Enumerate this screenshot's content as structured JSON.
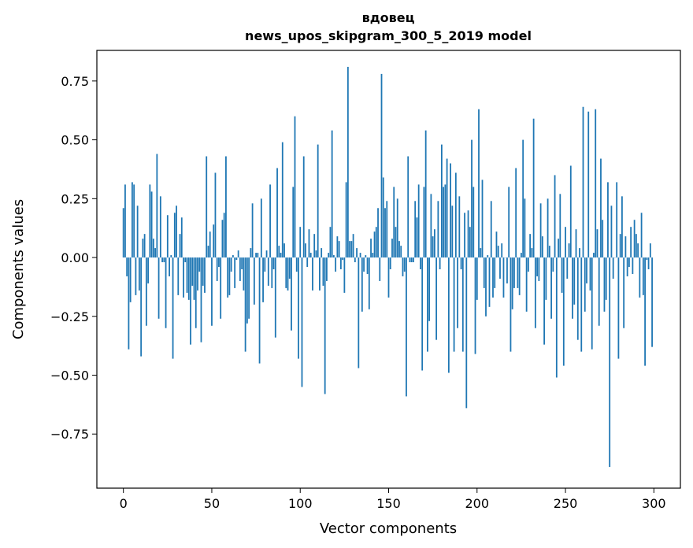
{
  "chart_data": {
    "type": "bar",
    "title": "вдовец",
    "subtitle": "news_upos_skipgram_300_5_2019 model",
    "xlabel": "Vector components",
    "ylabel": "Components values",
    "xlim": [
      -15,
      315
    ],
    "ylim": [
      -0.98,
      0.88
    ],
    "xticks": [
      0,
      50,
      100,
      150,
      200,
      250,
      300
    ],
    "yticks": [
      -0.75,
      -0.5,
      -0.25,
      0.0,
      0.25,
      0.5,
      0.75
    ],
    "ytick_labels": [
      "−0.75",
      "−0.50",
      "−0.25",
      "0.00",
      "0.25",
      "0.50",
      "0.75"
    ],
    "grid": false,
    "bar_color": "#1f77b4",
    "values": [
      0.21,
      0.31,
      -0.08,
      -0.39,
      -0.19,
      0.32,
      0.31,
      -0.16,
      0.22,
      -0.14,
      -0.42,
      0.08,
      0.1,
      -0.29,
      -0.11,
      0.31,
      0.28,
      0.08,
      0.04,
      0.44,
      -0.26,
      0.26,
      -0.02,
      -0.02,
      -0.3,
      0.18,
      -0.08,
      0.01,
      -0.43,
      0.19,
      0.22,
      -0.16,
      0.1,
      0.17,
      -0.17,
      -0.02,
      -0.15,
      -0.18,
      -0.37,
      -0.12,
      -0.18,
      -0.3,
      -0.14,
      -0.06,
      -0.36,
      -0.12,
      -0.15,
      0.43,
      0.05,
      0.11,
      -0.29,
      0.14,
      0.36,
      -0.1,
      -0.04,
      -0.26,
      0.16,
      0.19,
      0.43,
      -0.17,
      -0.16,
      -0.06,
      0.01,
      -0.13,
      -0.01,
      0.03,
      -0.1,
      -0.05,
      -0.14,
      -0.4,
      -0.28,
      -0.26,
      0.04,
      0.23,
      -0.2,
      0.02,
      0.02,
      -0.45,
      0.25,
      -0.19,
      -0.06,
      0.03,
      -0.12,
      0.31,
      -0.13,
      -0.05,
      -0.34,
      0.38,
      0.05,
      0.02,
      0.49,
      0.06,
      -0.13,
      -0.14,
      -0.09,
      -0.31,
      0.3,
      0.6,
      -0.06,
      -0.43,
      0.13,
      -0.55,
      0.43,
      0.06,
      -0.04,
      0.12,
      0.02,
      -0.14,
      0.1,
      0.03,
      0.48,
      -0.14,
      0.04,
      -0.12,
      -0.58,
      -0.1,
      0.02,
      0.13,
      0.54,
      0.01,
      -0.06,
      0.09,
      0.07,
      -0.05,
      -0.01,
      -0.15,
      0.32,
      0.81,
      0.07,
      0.07,
      0.1,
      -0.02,
      0.04,
      -0.47,
      0.02,
      -0.23,
      -0.06,
      0.01,
      -0.07,
      -0.22,
      0.08,
      0.02,
      0.11,
      0.13,
      0.21,
      -0.1,
      0.78,
      0.34,
      0.21,
      0.24,
      -0.17,
      -0.05,
      0.08,
      0.3,
      0.13,
      0.25,
      0.07,
      0.05,
      -0.08,
      -0.06,
      -0.59,
      0.43,
      -0.02,
      -0.02,
      -0.02,
      0.24,
      0.17,
      0.31,
      -0.05,
      -0.48,
      0.3,
      0.54,
      -0.4,
      -0.27,
      0.27,
      0.09,
      0.12,
      -0.35,
      0.24,
      -0.05,
      0.48,
      0.3,
      0.31,
      0.42,
      -0.49,
      0.4,
      0.22,
      -0.4,
      0.36,
      -0.3,
      0.26,
      -0.05,
      -0.4,
      0.19,
      -0.64,
      0.2,
      0.13,
      0.5,
      0.3,
      -0.41,
      -0.18,
      0.63,
      0.04,
      0.33,
      -0.13,
      -0.25,
      0.01,
      -0.21,
      0.24,
      -0.17,
      -0.13,
      0.11,
      0.05,
      -0.09,
      0.06,
      -0.17,
      0.0,
      -0.11,
      0.3,
      -0.4,
      -0.22,
      -0.13,
      0.38,
      -0.13,
      -0.16,
      0.02,
      0.5,
      0.25,
      -0.23,
      -0.06,
      0.1,
      0.04,
      0.59,
      -0.3,
      -0.08,
      -0.1,
      0.23,
      0.09,
      -0.37,
      -0.18,
      0.25,
      0.05,
      -0.26,
      -0.06,
      0.35,
      -0.51,
      0.08,
      0.27,
      -0.15,
      -0.46,
      0.13,
      -0.09,
      0.06,
      0.39,
      -0.26,
      -0.2,
      0.12,
      -0.35,
      0.04,
      -0.4,
      0.64,
      -0.23,
      -0.11,
      0.62,
      -0.14,
      -0.39,
      0.02,
      0.63,
      0.12,
      -0.29,
      0.42,
      0.16,
      -0.23,
      -0.18,
      0.32,
      -0.89,
      0.22,
      -0.09,
      0.0,
      0.32,
      -0.43,
      0.1,
      0.26,
      -0.3,
      0.09,
      -0.08,
      -0.04,
      0.13,
      -0.07,
      0.16,
      0.1,
      0.06,
      -0.17,
      0.19,
      -0.16,
      -0.46,
      -0.01,
      -0.05,
      0.06,
      -0.38
    ]
  }
}
